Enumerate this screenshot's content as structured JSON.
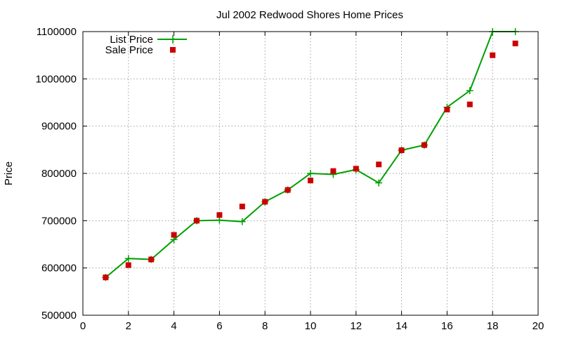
{
  "chart_data": {
    "type": "line",
    "title": "Jul 2002 Redwood Shores Home Prices",
    "xlabel": "",
    "ylabel": "Price",
    "xlim": [
      0,
      20
    ],
    "ylim": [
      500000,
      1100000
    ],
    "xticks": [
      0,
      2,
      4,
      6,
      8,
      10,
      12,
      14,
      16,
      18,
      20
    ],
    "yticks": [
      500000,
      600000,
      700000,
      800000,
      900000,
      1000000,
      1100000
    ],
    "grid": true,
    "legend_position": "top-left",
    "series": [
      {
        "name": "List Price",
        "style": "line-with-plus-markers",
        "color": "#00a000",
        "x": [
          1,
          2,
          3,
          4,
          5,
          6,
          7,
          8,
          9,
          10,
          11,
          12,
          13,
          14,
          15,
          16,
          17,
          18,
          19
        ],
        "y": [
          580000,
          620000,
          618000,
          660000,
          700000,
          701000,
          698000,
          740000,
          765000,
          800000,
          798000,
          808000,
          780000,
          849000,
          860000,
          940000,
          975000,
          1100000,
          1100000
        ]
      },
      {
        "name": "Sale Price",
        "style": "square-markers",
        "color": "#cc0000",
        "x": [
          1,
          2,
          3,
          4,
          5,
          6,
          7,
          8,
          9,
          10,
          11,
          12,
          13,
          14,
          15,
          16,
          17,
          18,
          19
        ],
        "y": [
          580000,
          606000,
          618000,
          670000,
          700000,
          712000,
          730000,
          740000,
          765000,
          785000,
          805000,
          810000,
          819000,
          849000,
          860000,
          935000,
          946000,
          1050000,
          1075000
        ]
      }
    ]
  }
}
